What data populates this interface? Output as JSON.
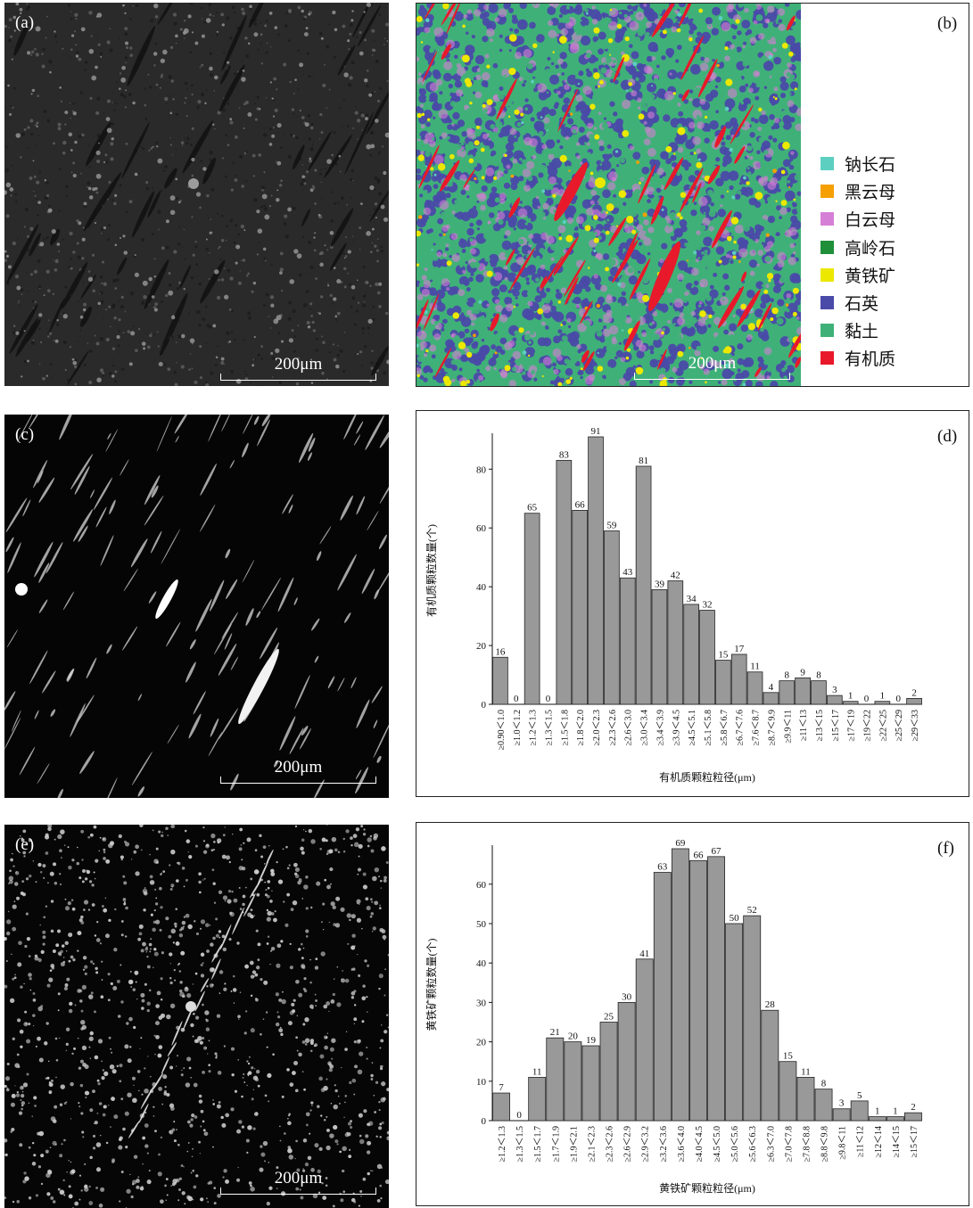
{
  "panels": {
    "a": {
      "label": "(a)",
      "scale": "200μm"
    },
    "b": {
      "label": "(b)",
      "scale": "200μm"
    },
    "c": {
      "label": "(c)",
      "scale": "200μm"
    },
    "d": {
      "label": "(d)"
    },
    "e": {
      "label": "(e)",
      "scale": "200μm"
    },
    "f": {
      "label": "(f)"
    }
  },
  "legend": [
    {
      "label": "钠长石",
      "color": "#5ccfc0"
    },
    {
      "label": "黑云母",
      "color": "#f5a000"
    },
    {
      "label": "白云母",
      "color": "#d67fd6"
    },
    {
      "label": "高岭石",
      "color": "#1f8f3a"
    },
    {
      "label": "黄铁矿",
      "color": "#ece800"
    },
    {
      "label": "石英",
      "color": "#4a4aa8"
    },
    {
      "label": "黏土",
      "color": "#3fb178"
    },
    {
      "label": "有机质",
      "color": "#e8192a"
    }
  ],
  "chart_data": [
    {
      "type": "bar",
      "panel": "d",
      "xlabel": "有机质颗粒粒径(μm)",
      "ylabel": "有机质颗粒数量(个)",
      "ylim": [
        0,
        91
      ],
      "yticks": [
        0,
        20,
        40,
        60,
        80
      ],
      "categories": [
        "≥0.90＜1.0",
        "≥1.0＜1.2",
        "≥1.2＜1.3",
        "≥1.3＜1.5",
        "≥1.5＜1.8",
        "≥1.8＜2.0",
        "≥2.0＜2.3",
        "≥2.3＜2.6",
        "≥2.6＜3.0",
        "≥3.0＜3.4",
        "≥3.4＜3.9",
        "≥3.9＜4.5",
        "≥4.5＜5.1",
        "≥5.1＜5.8",
        "≥5.8＜6.7",
        "≥6.7＜7.6",
        "≥7.6＜8.7",
        "≥8.7＜9.9",
        "≥9.9＜11",
        "≥11＜13",
        "≥13＜15",
        "≥15＜17",
        "≥17＜19",
        "≥19＜22",
        "≥22＜25",
        "≥25＜29",
        "≥29＜33"
      ],
      "values": [
        16,
        0,
        65,
        0,
        83,
        66,
        91,
        59,
        43,
        81,
        39,
        42,
        34,
        32,
        15,
        17,
        11,
        4,
        8,
        9,
        8,
        3,
        1,
        0,
        1,
        0,
        2
      ],
      "bar_color": "#999999"
    },
    {
      "type": "bar",
      "panel": "f",
      "xlabel": "黄铁矿颗粒粒径(μm)",
      "ylabel": "黄铁矿颗粒数量(个)",
      "ylim": [
        0,
        69
      ],
      "yticks": [
        0,
        10,
        20,
        30,
        40,
        50,
        60
      ],
      "categories": [
        "≥1.2＜1.3",
        "≥1.3＜1.5",
        "≥1.5＜1.7",
        "≥1.7＜1.9",
        "≥1.9＜2.1",
        "≥2.1＜2.3",
        "≥2.3＜2.6",
        "≥2.6＜2.9",
        "≥2.9＜3.2",
        "≥3.2＜3.6",
        "≥3.6＜4.0",
        "≥4.0＜4.5",
        "≥4.5＜5.0",
        "≥5.0＜5.6",
        "≥5.6＜6.3",
        "≥6.3＜7.0",
        "≥7.0＜7.8",
        "≥7.8＜8.8",
        "≥8.8＜9.8",
        "≥9.8＜11",
        "≥11＜12",
        "≥12＜14",
        "≥14＜15",
        "≥15＜17"
      ],
      "values": [
        7,
        0,
        11,
        21,
        20,
        19,
        25,
        30,
        41,
        63,
        69,
        66,
        67,
        50,
        52,
        28,
        15,
        11,
        8,
        3,
        5,
        1,
        1,
        2
      ],
      "bar_color": "#999999"
    }
  ]
}
